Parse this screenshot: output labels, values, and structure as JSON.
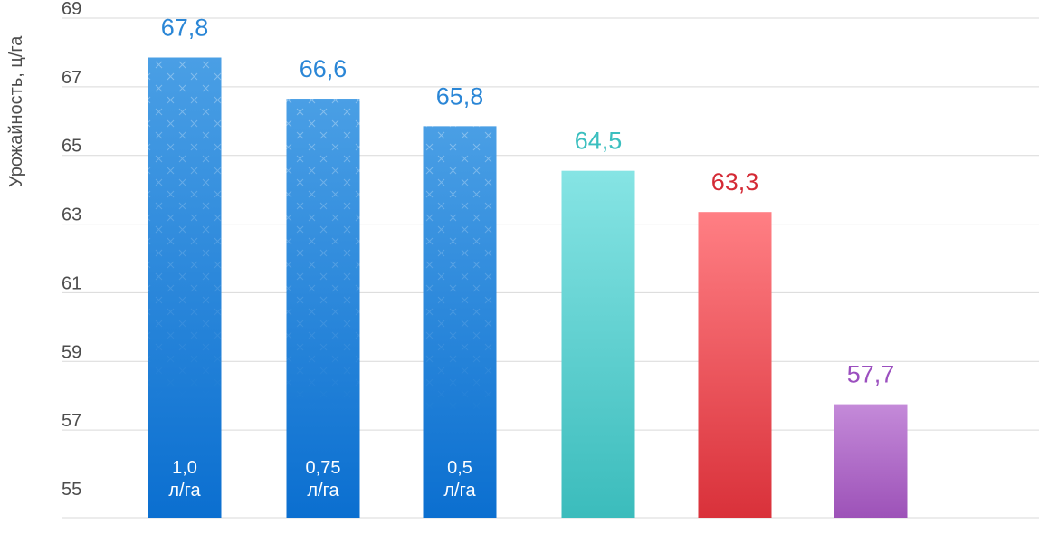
{
  "chart_data": {
    "type": "bar",
    "ylabel": "Урожайность, ц/га",
    "ylim": [
      55,
      69
    ],
    "yticks": [
      55,
      57,
      59,
      61,
      63,
      65,
      67,
      69
    ],
    "grid": true,
    "values": [
      67.8,
      66.6,
      65.8,
      64.5,
      63.3,
      57.7
    ],
    "value_labels": [
      "67,8",
      "66,6",
      "65,8",
      "64,5",
      "63,3",
      "57,7"
    ],
    "bar_inner_labels": [
      [
        "1,0",
        "л/га"
      ],
      [
        "0,75",
        "л/га"
      ],
      [
        "0,5",
        "л/га"
      ],
      [],
      [],
      []
    ],
    "bar_colors": [
      [
        "#4a9fe5",
        "#0b6fd0"
      ],
      [
        "#4a9fe5",
        "#0b6fd0"
      ],
      [
        "#4a9fe5",
        "#0b6fd0"
      ],
      [
        "#86e4e4",
        "#3bbcbc"
      ],
      [
        "#ff7f84",
        "#d9313a"
      ],
      [
        "#c48ad9",
        "#9d52b8"
      ]
    ],
    "value_label_colors": [
      "#2a86d6",
      "#2a86d6",
      "#2a86d6",
      "#3bbfbf",
      "#d42a35",
      "#9b4fbf"
    ]
  }
}
